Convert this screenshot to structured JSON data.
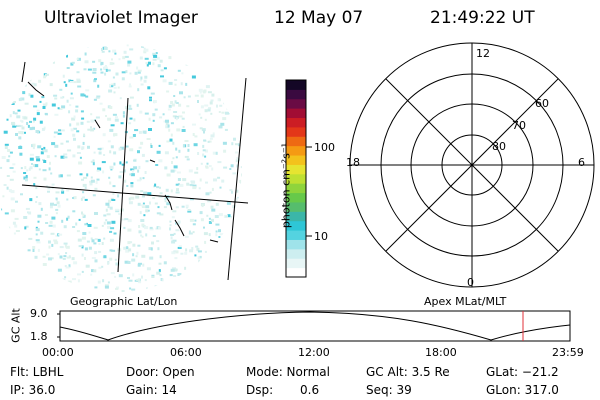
{
  "header": {
    "instrument": "Ultraviolet Imager",
    "date": "12 May 07",
    "time": "21:49:22 UT"
  },
  "image_panel": {
    "label": "Geographic Lat/Lon"
  },
  "colorbar": {
    "unit_label": "photon cm⁻²s⁻¹",
    "tick_labels": [
      "100",
      "10"
    ],
    "colors": [
      "#ffffff",
      "#e8f6f6",
      "#cdeef0",
      "#9fe3ea",
      "#54d3e0",
      "#2ec6d6",
      "#3bb6a8",
      "#56bd6d",
      "#67c94a",
      "#8fd43c",
      "#bfe032",
      "#e6e431",
      "#f3c21c",
      "#f59a13",
      "#ee6a13",
      "#e33719",
      "#cc1d24",
      "#a10d34",
      "#6a0b44",
      "#3a0a40",
      "#140726"
    ]
  },
  "polar_plot": {
    "label": "Apex MLat/MLT",
    "mlt_labels": {
      "top": "12",
      "left": "18",
      "right": "6",
      "bottom": "0"
    },
    "lat_labels": [
      "60",
      "70",
      "80"
    ]
  },
  "altitude_plot": {
    "axis_title": "GC Alt",
    "y_ticks": [
      "9.0",
      "1.8"
    ],
    "x_ticks": [
      "00:00",
      "06:00",
      "12:00",
      "18:00",
      "23:59"
    ],
    "marker_color": "#e0303a"
  },
  "info": {
    "flt": "Flt: LBHL",
    "door": "Door: Open",
    "mode": "Mode: Normal",
    "gc_alt": "GC Alt: 3.5 Re",
    "glat": "GLat: −21.2",
    "ip": "IP: 36.0",
    "gain": "Gain: 14",
    "dsp_label": "Dsp:",
    "dsp_value": "0.6",
    "seq": "Seq: 39",
    "glon": "GLon: 317.0"
  }
}
